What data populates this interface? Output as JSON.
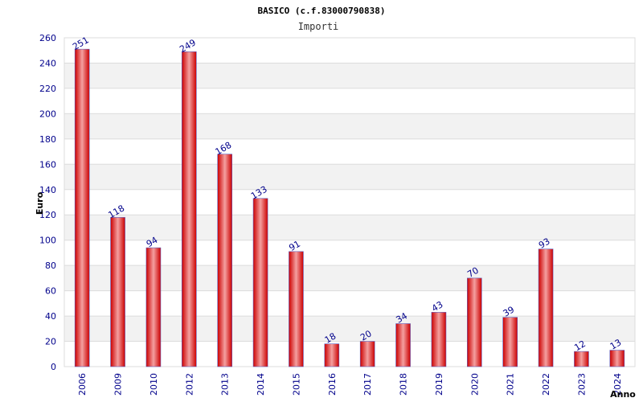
{
  "chart_data": {
    "type": "bar",
    "title": "BASICO (c.f.83000790838)",
    "subtitle": "Importi",
    "xlabel": "Anno",
    "ylabel": "Euro",
    "categories": [
      "2006",
      "2009",
      "2010",
      "2012",
      "2013",
      "2014",
      "2015",
      "2016",
      "2017",
      "2018",
      "2019",
      "2020",
      "2021",
      "2022",
      "2023",
      "2024"
    ],
    "values": [
      251,
      118,
      94,
      249,
      168,
      133,
      91,
      18,
      20,
      34,
      43,
      70,
      39,
      93,
      12,
      13
    ],
    "ylim": [
      0,
      260
    ],
    "yticks": [
      0,
      20,
      40,
      60,
      80,
      100,
      120,
      140,
      160,
      180,
      200,
      220,
      240,
      260
    ],
    "grid": true,
    "legend": "none",
    "colors": {
      "bar_edge": "#cc0000",
      "bar_mid": "#f4a0a0",
      "bar_border": "#6060c0",
      "tick_text": "#00008b",
      "band": "#f2f2f2",
      "grid": "#dcdcdc"
    }
  }
}
